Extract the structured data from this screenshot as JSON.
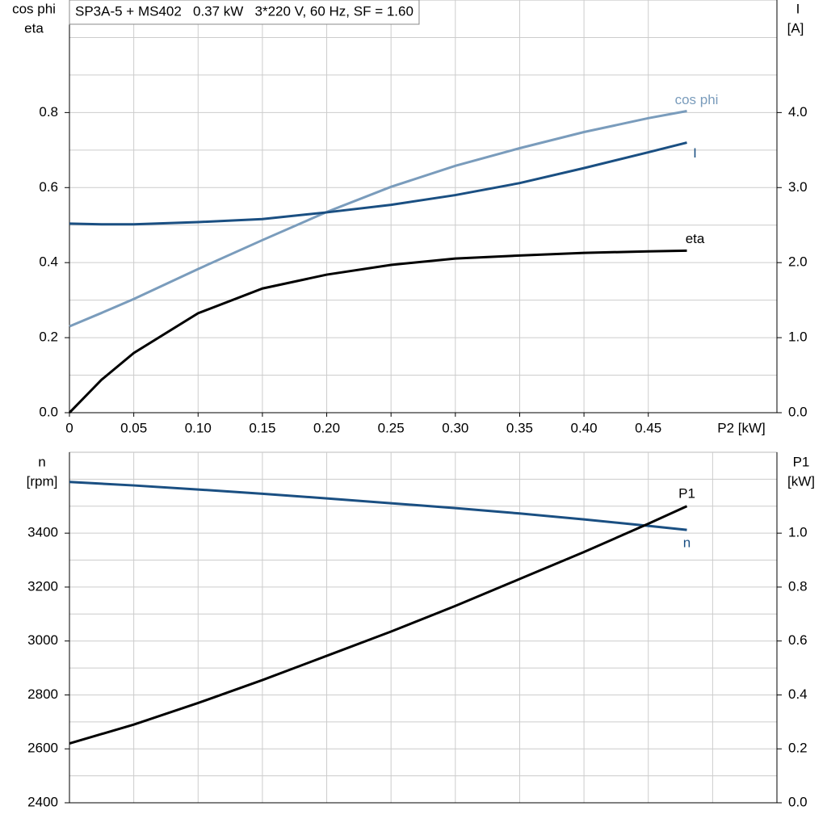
{
  "chart_data": [
    {
      "type": "line",
      "title": "SP3A-5 + MS402   0.37 kW   3*220 V, 60 Hz, SF = 1.60",
      "xlabel": "P2 [kW]",
      "ylabel": [
        "cos phi",
        "eta"
      ],
      "y2label": [
        "I",
        "[A]"
      ],
      "xlim": [
        0,
        0.55
      ],
      "xticks": [
        0,
        0.05,
        {
          "value": 0.1,
          "label": "0.10"
        },
        0.15,
        {
          "value": 0.2,
          "label": "0.20"
        },
        0.25,
        {
          "value": 0.3,
          "label": "0.30"
        },
        0.35,
        {
          "value": 0.4,
          "label": "0.40"
        },
        0.45
      ],
      "ylim": [
        0,
        1.1
      ],
      "yticks": [
        {
          "value": 0,
          "label": "0.0"
        },
        0.2,
        0.4,
        0.6,
        0.8
      ],
      "ygrid": [
        0.1,
        0.2,
        0.3,
        0.4,
        0.5,
        0.6,
        0.7,
        0.8,
        0.9,
        1.0
      ],
      "y2lim": [
        0,
        5.5
      ],
      "y2ticks": [
        {
          "value": 0,
          "label": "0.0"
        },
        {
          "value": 1,
          "label": "1.0"
        },
        {
          "value": 2,
          "label": "2.0"
        },
        {
          "value": 3,
          "label": "3.0"
        },
        {
          "value": 4,
          "label": "4.0"
        }
      ],
      "grid": true,
      "x": [
        0,
        0.025,
        0.05,
        0.1,
        0.15,
        0.2,
        0.25,
        0.3,
        0.35,
        0.4,
        0.45,
        0.48
      ],
      "series": [
        {
          "name": "cos phi",
          "color": "#7a9cbc",
          "values": [
            0.23,
            0.266,
            0.303,
            0.383,
            0.46,
            0.535,
            0.602,
            0.658,
            0.705,
            0.748,
            0.785,
            0.804
          ]
        },
        {
          "name": "I",
          "color": "#1a4f82",
          "axis": "y2",
          "values": [
            2.52,
            2.51,
            2.51,
            2.54,
            2.58,
            2.67,
            2.77,
            2.9,
            3.06,
            3.26,
            3.47,
            3.6
          ]
        },
        {
          "name": "eta",
          "color": "#000000",
          "values": [
            0,
            0.088,
            0.159,
            0.265,
            0.331,
            0.368,
            0.394,
            0.411,
            0.419,
            0.426,
            0.43,
            0.432
          ]
        }
      ]
    },
    {
      "type": "line",
      "ylabel": [
        "n",
        "[rpm]"
      ],
      "y2label": [
        "P1",
        "[kW]"
      ],
      "xlim": [
        0,
        0.55
      ],
      "xgrid": [
        0.05,
        0.1,
        0.15,
        0.2,
        0.25,
        0.3,
        0.35,
        0.4,
        0.45,
        0.5
      ],
      "ylim": [
        2400,
        3700
      ],
      "yticks": [
        2400,
        2600,
        2800,
        3000,
        3200,
        3400
      ],
      "ygrid": [
        2500,
        2600,
        2700,
        2800,
        2900,
        3000,
        3100,
        3200,
        3300,
        3400,
        3500,
        3600
      ],
      "y2lim": [
        0,
        1.3
      ],
      "y2ticks": [
        {
          "value": 0,
          "label": "0.0"
        },
        0.2,
        0.4,
        0.6,
        0.8,
        {
          "value": 1,
          "label": "1.0"
        }
      ],
      "grid": true,
      "x": [
        0,
        0.05,
        0.1,
        0.15,
        0.2,
        0.25,
        0.3,
        0.35,
        0.4,
        0.45,
        0.48
      ],
      "series": [
        {
          "name": "n",
          "color": "#1a4f82",
          "values": [
            3590,
            3577,
            3562,
            3546,
            3529,
            3511,
            3493,
            3473,
            3451,
            3427,
            3412
          ]
        },
        {
          "name": "P1",
          "color": "#000000",
          "axis": "y2",
          "values": [
            0.22,
            0.29,
            0.37,
            0.455,
            0.545,
            0.635,
            0.73,
            0.83,
            0.93,
            1.035,
            1.1
          ]
        }
      ]
    }
  ]
}
